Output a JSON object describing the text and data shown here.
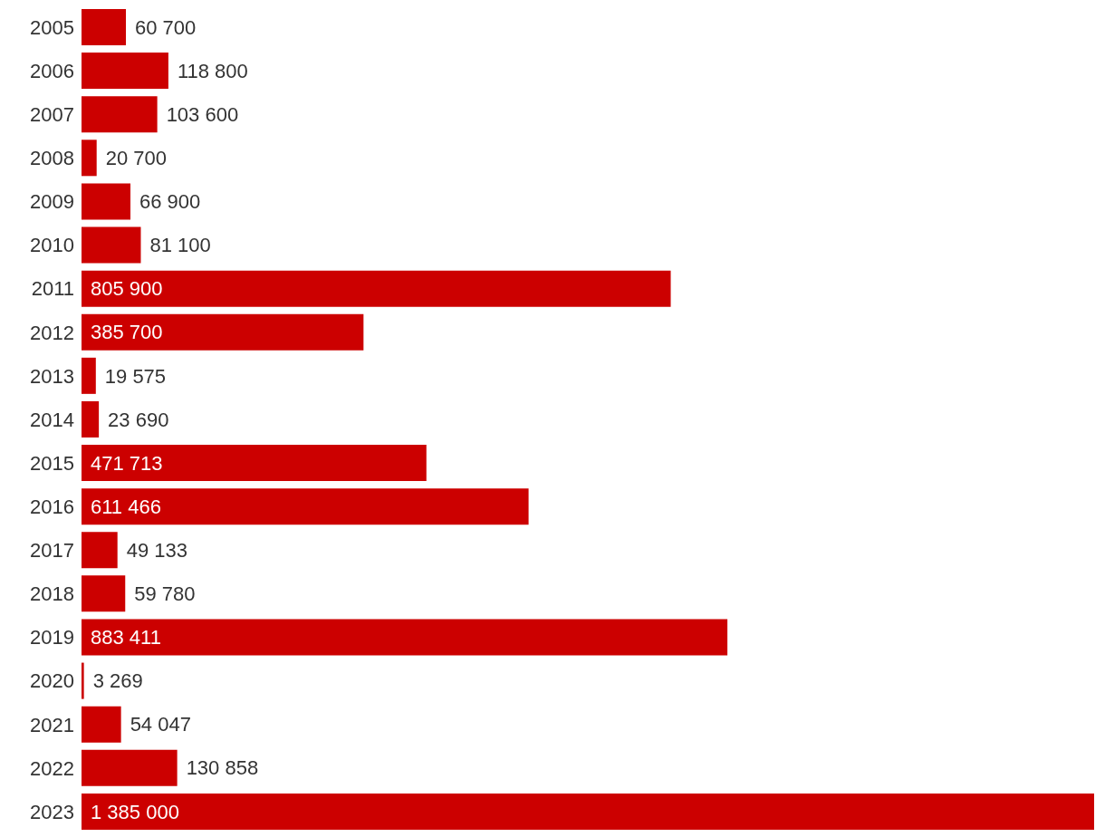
{
  "chart_data": {
    "type": "bar",
    "orientation": "horizontal",
    "categories": [
      "2005",
      "2006",
      "2007",
      "2008",
      "2009",
      "2010",
      "2011",
      "2012",
      "2013",
      "2014",
      "2015",
      "2016",
      "2017",
      "2018",
      "2019",
      "2020",
      "2021",
      "2022",
      "2023"
    ],
    "values": [
      60700,
      118800,
      103600,
      20700,
      66900,
      81100,
      805900,
      385700,
      19575,
      23690,
      471713,
      611466,
      49133,
      59780,
      883411,
      3269,
      54047,
      130858,
      1385000
    ],
    "value_labels": [
      "60 700",
      "118 800",
      "103 600",
      "20 700",
      "66 900",
      "81 100",
      "805 900",
      "385 700",
      "19 575",
      "23 690",
      "471 713",
      "611 466",
      "49 133",
      "59 780",
      "883 411",
      "3 269",
      "54 047",
      "130 858",
      "1 385 000"
    ],
    "color": "#cc0000",
    "tick_labels": "y"
  }
}
